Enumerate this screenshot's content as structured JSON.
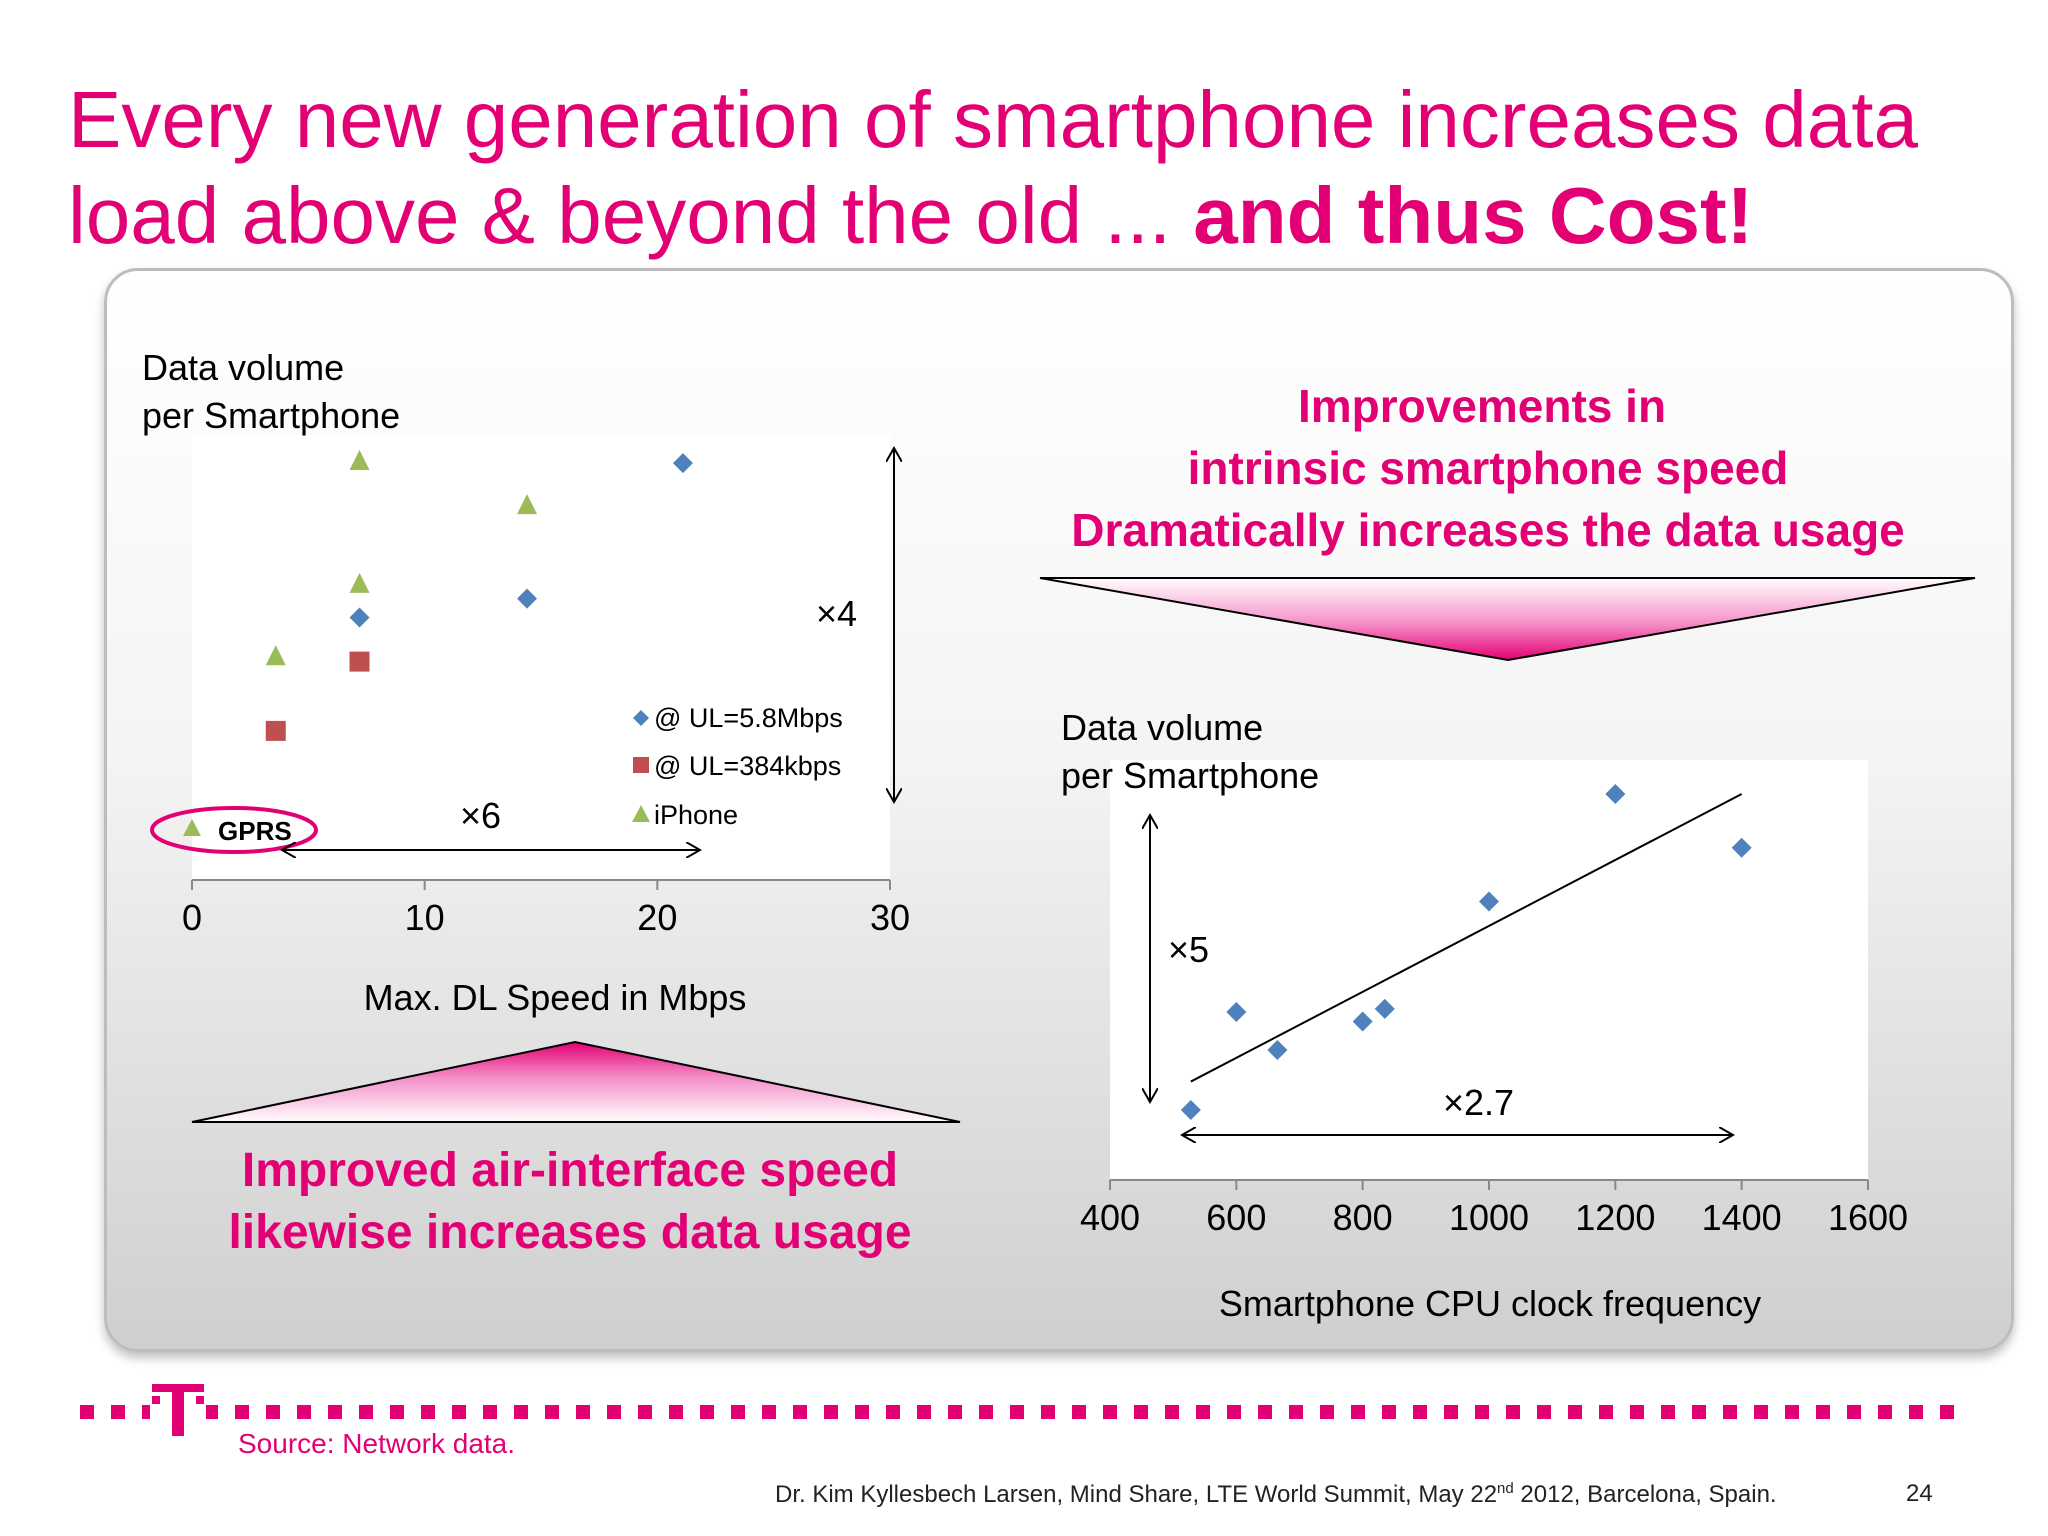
{
  "slide": {
    "title_regular": "Every new generation of smartphone increases data load above & beyond the old ... ",
    "title_bold": "and thus Cost!",
    "source": "Source: Network data.",
    "credit_pre": "Dr. Kim Kyllesbech Larsen, Mind Share, LTE World Summit, May 22",
    "credit_sup": "nd",
    "credit_post": " 2012, Barcelona, Spain.",
    "page_number": "24",
    "accent_color": "#e20074",
    "logo_icon": "t-logo-icon"
  },
  "callouts": {
    "top_right": [
      "Improvements in",
      "intrinsic smartphone speed",
      "Dramatically increases the data usage"
    ],
    "bottom_left": [
      "Improved air-interface speed",
      "likewise increases data usage"
    ]
  },
  "chart_data": [
    {
      "type": "scatter",
      "title": "",
      "ylabel_lines": [
        "Data volume",
        "per Smartphone"
      ],
      "xlabel": "Max. DL Speed in Mbps",
      "xlim": [
        0,
        30
      ],
      "xticks": [
        "0",
        "10",
        "20",
        "30"
      ],
      "y_ticks_shown": false,
      "legend_position": "bottom-right",
      "series": [
        {
          "name": "@ UL=5.8Mbps",
          "marker": "diamond",
          "color": "#4f81bd",
          "points": [
            {
              "x": 7.2,
              "y": 0.5
            },
            {
              "x": 14.4,
              "y": 0.56
            },
            {
              "x": 21.1,
              "y": 0.99
            }
          ]
        },
        {
          "name": "@ UL=384kbps",
          "marker": "square",
          "color": "#c0504d",
          "points": [
            {
              "x": 3.6,
              "y": 0.14
            },
            {
              "x": 7.2,
              "y": 0.36
            }
          ]
        },
        {
          "name": "iPhone",
          "marker": "triangle",
          "color": "#9bbb59",
          "points": [
            {
              "x": 3.6,
              "y": 0.38
            },
            {
              "x": 7.2,
              "y": 0.61
            },
            {
              "x": 14.4,
              "y": 0.86
            },
            {
              "x": 7.2,
              "y": 1.0
            }
          ]
        }
      ],
      "annotations": {
        "gprs_label": "GPRS",
        "x_factor": "×6",
        "y_factor": "×4"
      }
    },
    {
      "type": "scatter",
      "title": "",
      "ylabel_lines": [
        "Data volume",
        "per Smartphone"
      ],
      "xlabel": "Smartphone CPU clock frequency",
      "xlim": [
        400,
        1600
      ],
      "xticks": [
        "400",
        "600",
        "800",
        "1000",
        "1200",
        "1400",
        "1600"
      ],
      "y_ticks_shown": false,
      "trendline": true,
      "series": [
        {
          "name": "",
          "marker": "diamond",
          "color": "#4f81bd",
          "points": [
            {
              "x": 528,
              "y": 0.0
            },
            {
              "x": 600,
              "y": 0.31
            },
            {
              "x": 665,
              "y": 0.19
            },
            {
              "x": 800,
              "y": 0.28
            },
            {
              "x": 835,
              "y": 0.32
            },
            {
              "x": 1000,
              "y": 0.66
            },
            {
              "x": 1200,
              "y": 1.0
            },
            {
              "x": 1400,
              "y": 0.83
            }
          ]
        }
      ],
      "trendline_points": [
        {
          "x": 528,
          "y": 0.09
        },
        {
          "x": 1400,
          "y": 1.0
        }
      ],
      "annotations": {
        "x_factor": "×2.7",
        "y_factor": "×5"
      }
    }
  ]
}
